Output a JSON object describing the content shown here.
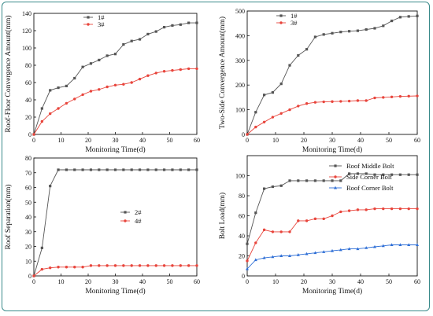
{
  "chart_data": [
    {
      "type": "line",
      "xlabel": "Monitoring Time(d)",
      "ylabel": "Roof-Floor Convergence Amount(mm)",
      "xlim": [
        0,
        60
      ],
      "ylim": [
        0,
        140
      ],
      "xticks": [
        0,
        10,
        20,
        30,
        40,
        50,
        60
      ],
      "yticks": [
        0,
        20,
        40,
        60,
        80,
        100,
        120,
        140
      ],
      "legend": "top-center",
      "series": [
        {
          "name": "1#",
          "color": "#555555",
          "marker": "square",
          "x": [
            0,
            3,
            6,
            9,
            12,
            15,
            18,
            21,
            24,
            27,
            30,
            33,
            36,
            39,
            42,
            45,
            48,
            51,
            54,
            57,
            60
          ],
          "y": [
            0,
            30,
            51,
            54,
            56,
            65,
            78,
            82,
            86,
            91,
            93,
            104,
            108,
            110,
            116,
            119,
            124,
            126,
            127,
            129,
            129
          ]
        },
        {
          "name": "3#",
          "color": "#e8453c",
          "marker": "circle",
          "x": [
            0,
            3,
            6,
            9,
            12,
            15,
            18,
            21,
            24,
            27,
            30,
            33,
            36,
            39,
            42,
            45,
            48,
            51,
            54,
            57,
            60
          ],
          "y": [
            0,
            15,
            24,
            30,
            36,
            41,
            46,
            50,
            52,
            55,
            57,
            58,
            60,
            64,
            68,
            71,
            73,
            74,
            75,
            76,
            76
          ]
        }
      ]
    },
    {
      "type": "line",
      "xlabel": "Monitoring Time(d)",
      "ylabel": "Two-Side Convergence Amount(mm)",
      "xlim": [
        0,
        60
      ],
      "ylim": [
        0,
        500
      ],
      "xticks": [
        0,
        10,
        20,
        30,
        40,
        50,
        60
      ],
      "yticks": [
        0,
        100,
        200,
        300,
        400,
        500
      ],
      "legend": "top-center",
      "series": [
        {
          "name": "1#",
          "color": "#555555",
          "marker": "square",
          "x": [
            0,
            3,
            6,
            9,
            12,
            15,
            18,
            21,
            24,
            27,
            30,
            33,
            36,
            39,
            42,
            45,
            48,
            51,
            54,
            57,
            60
          ],
          "y": [
            0,
            90,
            160,
            170,
            205,
            280,
            320,
            345,
            395,
            405,
            410,
            415,
            418,
            420,
            425,
            430,
            440,
            460,
            475,
            478,
            480
          ]
        },
        {
          "name": "3#",
          "color": "#e8453c",
          "marker": "circle",
          "x": [
            0,
            3,
            6,
            9,
            12,
            15,
            18,
            21,
            24,
            27,
            30,
            33,
            36,
            39,
            42,
            45,
            48,
            51,
            54,
            57,
            60
          ],
          "y": [
            0,
            30,
            50,
            70,
            85,
            100,
            115,
            125,
            130,
            132,
            133,
            134,
            135,
            137,
            137,
            148,
            150,
            152,
            154,
            155,
            156
          ]
        }
      ]
    },
    {
      "type": "line",
      "xlabel": "Monitoring Time(d)",
      "ylabel": "Roof Separation(mm)",
      "xlim": [
        0,
        60
      ],
      "ylim": [
        0,
        80
      ],
      "xticks": [
        0,
        10,
        20,
        30,
        40,
        50,
        60
      ],
      "yticks": [
        0,
        10,
        20,
        30,
        40,
        50,
        60,
        70,
        80
      ],
      "legend": "center-right",
      "series": [
        {
          "name": "2#",
          "color": "#555555",
          "marker": "square",
          "x": [
            0,
            3,
            6,
            9,
            12,
            15,
            18,
            21,
            24,
            27,
            30,
            33,
            36,
            39,
            42,
            45,
            48,
            51,
            54,
            57,
            60
          ],
          "y": [
            0,
            19,
            61,
            72,
            72,
            72,
            72,
            72,
            72,
            72,
            72,
            72,
            72,
            72,
            72,
            72,
            72,
            72,
            72,
            72,
            72
          ]
        },
        {
          "name": "4#",
          "color": "#e8453c",
          "marker": "circle",
          "x": [
            0,
            3,
            6,
            9,
            12,
            15,
            18,
            21,
            24,
            27,
            30,
            33,
            36,
            39,
            42,
            45,
            48,
            51,
            54,
            57,
            60
          ],
          "y": [
            0,
            4.5,
            5.5,
            6,
            6,
            6,
            6,
            7,
            7,
            7,
            7,
            7,
            7,
            7,
            7,
            7,
            7,
            7,
            7,
            7,
            7
          ]
        }
      ]
    },
    {
      "type": "line",
      "xlabel": "Monitoring Time(d)",
      "ylabel": "Bolt Load(mm)",
      "xlim": [
        0,
        60
      ],
      "ylim": [
        0,
        120
      ],
      "xticks": [
        0,
        10,
        20,
        30,
        40,
        50,
        60
      ],
      "yticks": [
        0,
        20,
        40,
        60,
        80,
        100
      ],
      "legend": "top-right",
      "series": [
        {
          "name": "Roof Middle Bolt",
          "color": "#555555",
          "marker": "square",
          "x": [
            0,
            3,
            6,
            9,
            12,
            15,
            18,
            21,
            24,
            27,
            30,
            33,
            36,
            39,
            42,
            45,
            48,
            51,
            54,
            57,
            60
          ],
          "y": [
            32,
            63,
            87,
            89,
            90,
            95,
            95,
            95,
            95,
            95,
            95,
            95,
            102,
            102,
            102,
            101,
            101,
            101,
            101,
            101,
            101
          ]
        },
        {
          "name": "Side Corner Bolt",
          "color": "#e8453c",
          "marker": "circle",
          "x": [
            0,
            3,
            6,
            9,
            12,
            15,
            18,
            21,
            24,
            27,
            30,
            33,
            36,
            39,
            42,
            45,
            48,
            51,
            54,
            57,
            60
          ],
          "y": [
            15,
            33,
            46,
            44,
            44,
            44,
            55,
            55,
            57,
            57,
            60,
            64,
            65,
            66,
            66,
            67,
            67,
            67,
            67,
            67,
            67
          ]
        },
        {
          "name": "Roof Corner Bolt",
          "color": "#2f6fd6",
          "marker": "triangle",
          "x": [
            0,
            3,
            6,
            9,
            12,
            15,
            18,
            21,
            24,
            27,
            30,
            33,
            36,
            39,
            42,
            45,
            48,
            51,
            54,
            57,
            60
          ],
          "y": [
            7,
            16,
            18,
            19,
            20,
            20,
            21,
            22,
            23,
            24,
            25,
            26,
            27,
            27,
            28,
            29,
            30,
            31,
            31,
            31,
            31
          ]
        }
      ]
    }
  ]
}
